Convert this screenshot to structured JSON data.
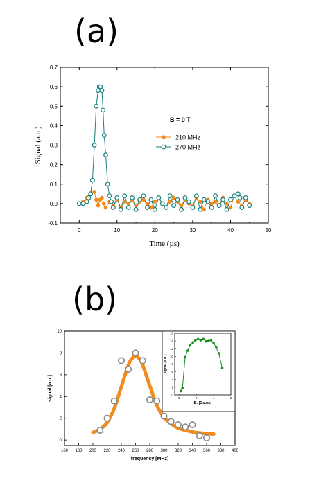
{
  "panel_labels": {
    "a": "(a)",
    "b": "(b)"
  },
  "chart_data": [
    {
      "type": "line",
      "xlabel": "Time (µs)",
      "ylabel": "Signal (a.u.)",
      "xlim": [
        -5,
        50
      ],
      "ylim": [
        -0.1,
        0.7
      ],
      "xticks": [
        0,
        10,
        20,
        30,
        40,
        50
      ],
      "yticks": [
        -0.1,
        0.0,
        0.1,
        0.2,
        0.3,
        0.4,
        0.5,
        0.6,
        0.7
      ],
      "annotation": "B = 0 T",
      "legend_position": "center-right",
      "grid": false,
      "colors": {
        "s210": "#f08a1c",
        "s270": "#157f7d"
      },
      "series": [
        {
          "name": "210 MHz",
          "marker": "filled-circle",
          "x": [
            0,
            1,
            2,
            3,
            4,
            4.5,
            5,
            5.5,
            6,
            6.5,
            7,
            8,
            9,
            10,
            11,
            12,
            13,
            14,
            15,
            16,
            17,
            18,
            19,
            20,
            21,
            22,
            23,
            24,
            25,
            26,
            27,
            28,
            29,
            30,
            31,
            32,
            33,
            34,
            35,
            36,
            37,
            38,
            39,
            40,
            41,
            42,
            43,
            44,
            45
          ],
          "y": [
            0.0,
            0.01,
            0.03,
            0.05,
            0.06,
            0.02,
            -0.01,
            0.02,
            0.03,
            0.0,
            -0.02,
            0.01,
            -0.01,
            0.02,
            -0.02,
            0.01,
            0.0,
            0.02,
            -0.01,
            0.01,
            0.02,
            0.0,
            -0.02,
            0.01,
            0.03,
            0.0,
            -0.02,
            0.01,
            0.03,
            0.01,
            -0.01,
            0.02,
            0.0,
            -0.01,
            0.03,
            0.01,
            -0.03,
            0.02,
            0.0,
            0.01,
            -0.01,
            0.03,
            0.0,
            -0.02,
            0.04,
            0.01,
            -0.01,
            0.02,
            0.0
          ]
        },
        {
          "name": "270 MHz",
          "marker": "open-circle",
          "x": [
            0,
            1,
            2,
            2.5,
            3,
            3.5,
            4,
            4.5,
            5,
            5.3,
            5.6,
            6,
            6.3,
            6.6,
            7,
            7.5,
            8,
            8.5,
            9,
            10,
            11,
            12,
            13,
            14,
            15,
            16,
            17,
            18,
            19,
            20,
            21,
            22,
            23,
            24,
            25,
            26,
            27,
            28,
            29,
            30,
            31,
            32,
            33,
            34,
            35,
            36,
            37,
            38,
            39,
            40,
            41,
            42,
            42.5,
            43,
            44,
            45
          ],
          "y": [
            0.0,
            0.0,
            0.01,
            0.03,
            0.05,
            0.12,
            0.3,
            0.5,
            0.58,
            0.6,
            0.6,
            0.58,
            0.48,
            0.35,
            0.25,
            0.1,
            0.04,
            0.01,
            -0.02,
            0.03,
            -0.03,
            0.04,
            -0.02,
            0.03,
            -0.03,
            0.02,
            0.04,
            -0.02,
            0.02,
            -0.03,
            0.03,
            0.0,
            -0.02,
            0.04,
            -0.01,
            0.02,
            -0.03,
            0.03,
            0.01,
            -0.02,
            0.04,
            -0.03,
            0.02,
            0.01,
            -0.02,
            0.04,
            -0.01,
            0.02,
            -0.03,
            0.02,
            0.04,
            0.05,
            0.03,
            -0.02,
            0.03,
            -0.01
          ]
        }
      ]
    },
    {
      "type": "scatter",
      "xlabel": "frequency [MHz]",
      "ylabel": "signal [a.u.]",
      "xlim": [
        160,
        400
      ],
      "ylim": [
        -0.5,
        10
      ],
      "xticks": [
        160,
        180,
        200,
        220,
        240,
        260,
        280,
        300,
        320,
        340,
        360,
        380,
        400
      ],
      "yticks": [
        0,
        2,
        4,
        6,
        8,
        10
      ],
      "grid": false,
      "colors": {
        "fit": "#f28c1e",
        "points": "#888888"
      },
      "series": [
        {
          "name": "data",
          "marker": "open-circle",
          "x": [
            210,
            220,
            230,
            240,
            250,
            260,
            270,
            280,
            290,
            300,
            310,
            320,
            330,
            340,
            350,
            360
          ],
          "y": [
            0.9,
            2.0,
            3.6,
            7.3,
            6.5,
            8.0,
            7.3,
            3.7,
            3.6,
            2.2,
            1.7,
            1.4,
            1.2,
            1.4,
            0.4,
            0.2
          ]
        },
        {
          "name": "fit",
          "style": "thick-line",
          "x": [
            200,
            210,
            220,
            230,
            240,
            250,
            255,
            260,
            265,
            270,
            280,
            290,
            300,
            310,
            320,
            330,
            340,
            350,
            360,
            370
          ],
          "y": [
            0.7,
            1.0,
            1.6,
            2.9,
            4.9,
            6.9,
            7.5,
            7.7,
            7.5,
            6.9,
            5.0,
            3.2,
            2.1,
            1.5,
            1.1,
            0.9,
            0.75,
            0.65,
            0.6,
            0.55
          ]
        }
      ],
      "inset": {
        "type": "line",
        "xlabel": "B₁ [Gauss]",
        "ylabel": "signal [a.u.]",
        "xlim": [
          -0.5,
          6
        ],
        "ylim": [
          0,
          16
        ],
        "xticks": [
          0,
          2,
          4,
          6
        ],
        "yticks": [
          0,
          2,
          4,
          6,
          8,
          10,
          12,
          14,
          16
        ],
        "color": "#1a8c1a",
        "position": "top-right",
        "x": [
          0.2,
          0.4,
          0.7,
          1.0,
          1.3,
          1.6,
          1.9,
          2.2,
          2.5,
          2.8,
          3.1,
          3.4,
          3.7,
          4.0,
          4.3,
          4.6,
          5.0
        ],
        "y": [
          1.0,
          1.8,
          9.8,
          11.5,
          13.0,
          13.6,
          14.2,
          14.5,
          14.2,
          14.5,
          13.9,
          14.0,
          14.2,
          13.5,
          12.3,
          10.8,
          7.0
        ]
      }
    }
  ]
}
